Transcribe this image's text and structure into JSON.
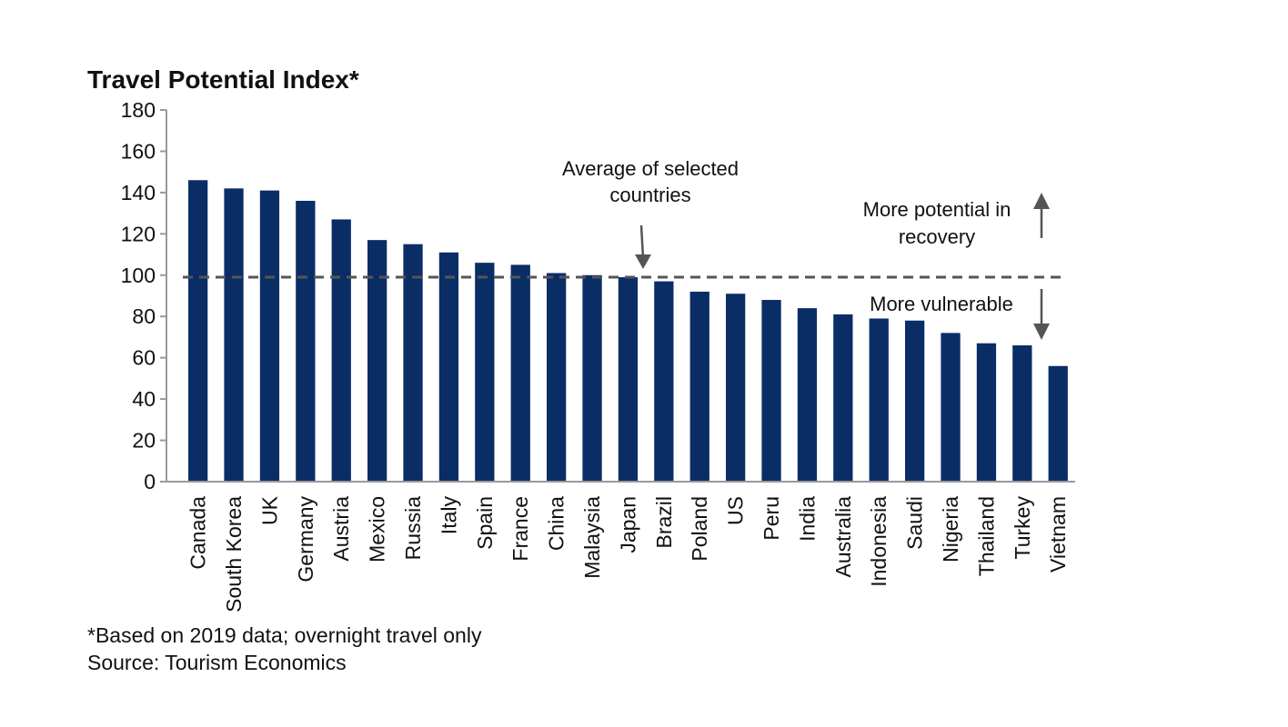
{
  "chart_data": {
    "type": "bar",
    "title": "Travel Potential Index*",
    "categories": [
      "Canada",
      "South Korea",
      "UK",
      "Germany",
      "Austria",
      "Mexico",
      "Russia",
      "Italy",
      "Spain",
      "France",
      "China",
      "Malaysia",
      "Japan",
      "Brazil",
      "Poland",
      "US",
      "Peru",
      "India",
      "Australia",
      "Indonesia",
      "Saudi",
      "Nigeria",
      "Thailand",
      "Turkey",
      "Vietnam"
    ],
    "values": [
      146,
      142,
      141,
      136,
      127,
      117,
      115,
      111,
      106,
      105,
      101,
      100,
      99,
      97,
      92,
      91,
      88,
      84,
      81,
      79,
      78,
      72,
      67,
      66,
      56
    ],
    "ylim": [
      0,
      180
    ],
    "yticks": [
      0,
      20,
      40,
      60,
      80,
      100,
      120,
      140,
      160,
      180
    ],
    "bar_color": "#0b2d66",
    "reference_line": {
      "value": 99,
      "style": "dashed",
      "color": "#555555"
    },
    "annotations": {
      "average": [
        "Average of selected",
        "countries"
      ],
      "up": [
        "More potential in",
        "recovery"
      ],
      "down": "More vulnerable"
    },
    "footnotes": [
      "*Based on 2019 data; overnight travel only",
      "Source: Tourism Economics"
    ]
  }
}
